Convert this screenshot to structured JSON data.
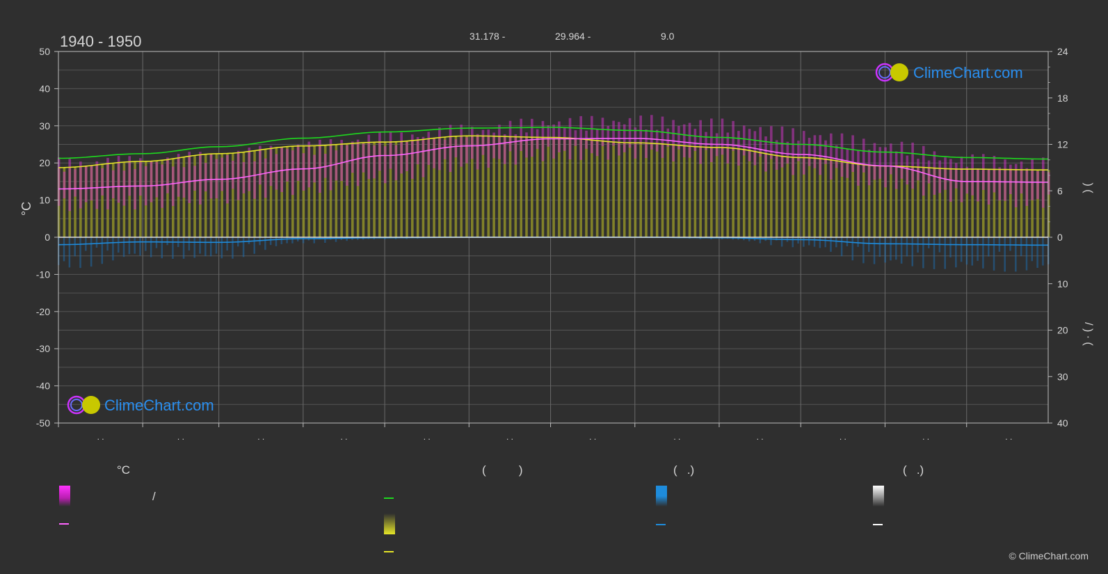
{
  "header": {
    "period": "1940 - 1950",
    "coord_lat": "31.178 -",
    "coord_lon": "29.964 -",
    "elevation": "9.0"
  },
  "watermark": {
    "brand": "ClimeChart.com"
  },
  "copyright": "© ClimeChart.com",
  "month_ticks": [
    ". .",
    ". .",
    ". .",
    ". .",
    ". .",
    ". .",
    ". .",
    ". .",
    ". .",
    ". .",
    ". .",
    ". ."
  ],
  "right_axis_text": {
    "upper": ")   (",
    "lower": "/   )   ·   ("
  },
  "legend": {
    "temp_header": "°C",
    "col2_header": "(          )",
    "col3_header": "(   .)",
    "col4_header": "(   .)",
    "temp_range_sep": "/"
  },
  "colors": {
    "background": "#2f2f2f",
    "daylight": "#1ed91e",
    "sunshine": "#e6e628",
    "temp_band": "#d22dc8",
    "temp_mean": "#ff64ff",
    "precip": "#1e8cdc",
    "snow": "#ffffff"
  },
  "chart_data": {
    "type": "line",
    "title": "1940 - 1950",
    "x_unit": "day_of_year",
    "left_axis": {
      "label": "°C",
      "range": [
        -50,
        50
      ],
      "ticks": [
        50,
        40,
        30,
        20,
        10,
        0,
        -10,
        -20,
        -30,
        -40,
        -50
      ]
    },
    "right_axis_upper": {
      "label": "",
      "range": [
        0,
        24
      ],
      "ticks": [
        24,
        18,
        12,
        6,
        0
      ]
    },
    "right_axis_lower": {
      "label": "",
      "range": [
        0,
        40
      ],
      "ticks": [
        0,
        10,
        20,
        30,
        40
      ]
    },
    "series": [
      {
        "key": "daylight",
        "axis": "hours",
        "x": [
          1,
          32,
          60,
          91,
          121,
          152,
          182,
          213,
          244,
          274,
          305,
          335,
          365
        ],
        "values": [
          10.2,
          10.8,
          11.7,
          12.8,
          13.6,
          14.1,
          14.2,
          13.8,
          12.9,
          12.0,
          11.0,
          10.3,
          10.1
        ]
      },
      {
        "key": "sunshine",
        "axis": "hours",
        "x": [
          1,
          32,
          60,
          91,
          121,
          152,
          182,
          213,
          244,
          274,
          305,
          335,
          365
        ],
        "values": [
          9.0,
          9.8,
          10.8,
          11.8,
          12.3,
          13.1,
          12.9,
          12.2,
          11.6,
          10.3,
          9.2,
          8.8,
          8.7
        ]
      },
      {
        "key": "temp_mean",
        "axis": "celsius",
        "x": [
          1,
          32,
          60,
          91,
          121,
          152,
          182,
          213,
          244,
          274,
          305,
          335,
          365
        ],
        "values": [
          13.0,
          13.8,
          15.6,
          18.4,
          22.0,
          24.6,
          26.5,
          26.6,
          25.0,
          22.3,
          19.2,
          15.0,
          14.8
        ]
      },
      {
        "key": "temp_band_max",
        "axis": "celsius",
        "x": [
          1,
          32,
          60,
          91,
          121,
          152,
          182,
          213,
          244,
          274,
          305,
          335,
          365
        ],
        "values": [
          19.5,
          20.0,
          21.5,
          24.0,
          26.5,
          28.5,
          30.5,
          31.0,
          30.0,
          27.5,
          24.5,
          20.5,
          19.5
        ]
      },
      {
        "key": "temp_band_min",
        "axis": "celsius",
        "x": [
          1,
          32,
          60,
          91,
          121,
          152,
          182,
          213,
          244,
          274,
          305,
          335,
          365
        ],
        "values": [
          9.0,
          9.5,
          11.0,
          13.5,
          16.5,
          20.0,
          22.5,
          23.0,
          21.5,
          18.5,
          15.0,
          11.0,
          9.5
        ]
      },
      {
        "key": "precip",
        "axis": "mm",
        "x": [
          1,
          32,
          60,
          91,
          121,
          152,
          182,
          213,
          244,
          274,
          305,
          335,
          365
        ],
        "values": [
          1.6,
          1.0,
          1.1,
          0.3,
          0.1,
          0.0,
          0.0,
          0.0,
          0.1,
          0.5,
          1.4,
          1.6,
          1.7
        ]
      }
    ]
  }
}
